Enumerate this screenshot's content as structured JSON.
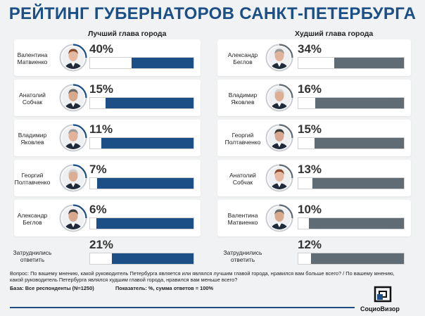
{
  "title": "РЕЙТИНГ ГУБЕРНАТОРОВ САНКТ-ПЕТЕРБУРГА",
  "colors": {
    "best": "#1b4f86",
    "worst": "#5f6b75",
    "title": "#1b4f86"
  },
  "chart_data": [
    {
      "type": "bar",
      "title": "Лучший глава города",
      "categories": [
        "Валентина Матвиенко",
        "Анатолий Собчак",
        "Владимир Яковлев",
        "Георгий Полтавченко",
        "Александр Беглов",
        "Затруднились ответить"
      ],
      "values": [
        40,
        15,
        11,
        7,
        6,
        21
      ],
      "value_labels": [
        "40%",
        "15%",
        "11%",
        "7%",
        "6%",
        "21%"
      ],
      "name_lines": [
        [
          "Валентина",
          "Матвиенко"
        ],
        [
          "Анатолий",
          "Собчак"
        ],
        [
          "Владимир",
          "Яковлев"
        ],
        [
          "Георгий",
          "Полтавченко"
        ],
        [
          "Александр",
          "Беглов"
        ],
        [
          "Затруднились",
          "ответить"
        ]
      ],
      "avatar_icons": [
        "portrait-matvienko-icon",
        "portrait-sobchak-icon",
        "portrait-yakovlev-icon",
        "portrait-poltavchenko-icon",
        "portrait-beglov-icon",
        ""
      ],
      "xlim": [
        0,
        100
      ]
    },
    {
      "type": "bar",
      "title": "Худший глава города",
      "categories": [
        "Александр Беглов",
        "Владимир Яковлев",
        "Георгий Полтавченко",
        "Анатолий Собчак",
        "Валентина Матвиенко",
        "Затруднились ответить"
      ],
      "values": [
        34,
        16,
        15,
        13,
        10,
        12
      ],
      "value_labels": [
        "34%",
        "16%",
        "15%",
        "13%",
        "10%",
        "12%"
      ],
      "name_lines": [
        [
          "Александр",
          "Беглов"
        ],
        [
          "Владимир",
          "Яковлев"
        ],
        [
          "Георгий",
          "Полтавченко"
        ],
        [
          "Анатолий",
          "Собчак"
        ],
        [
          "Валентина",
          "Матвиенко"
        ],
        [
          "Затруднились",
          "ответить"
        ]
      ],
      "avatar_icons": [
        "portrait-beglov-icon",
        "portrait-yakovlev-icon",
        "portrait-poltavchenko-icon",
        "portrait-sobchak-icon",
        "portrait-matvienko-icon",
        ""
      ],
      "xlim": [
        0,
        100
      ]
    }
  ],
  "footer": {
    "question": "Вопрос: По вашему мнению, какой руководитель Петербурга является или являлся лучшим главой города, нравился вам больше всего? / По вашему мнению, какой руководитель Петербурга являлся худшим главой города, нравился вам меньше всего?",
    "base": "База: Все респонденты (N=1250)",
    "indicator": "Показатель: %, сумма ответов = 100%"
  },
  "logo": {
    "text": "СоциоВизор"
  }
}
